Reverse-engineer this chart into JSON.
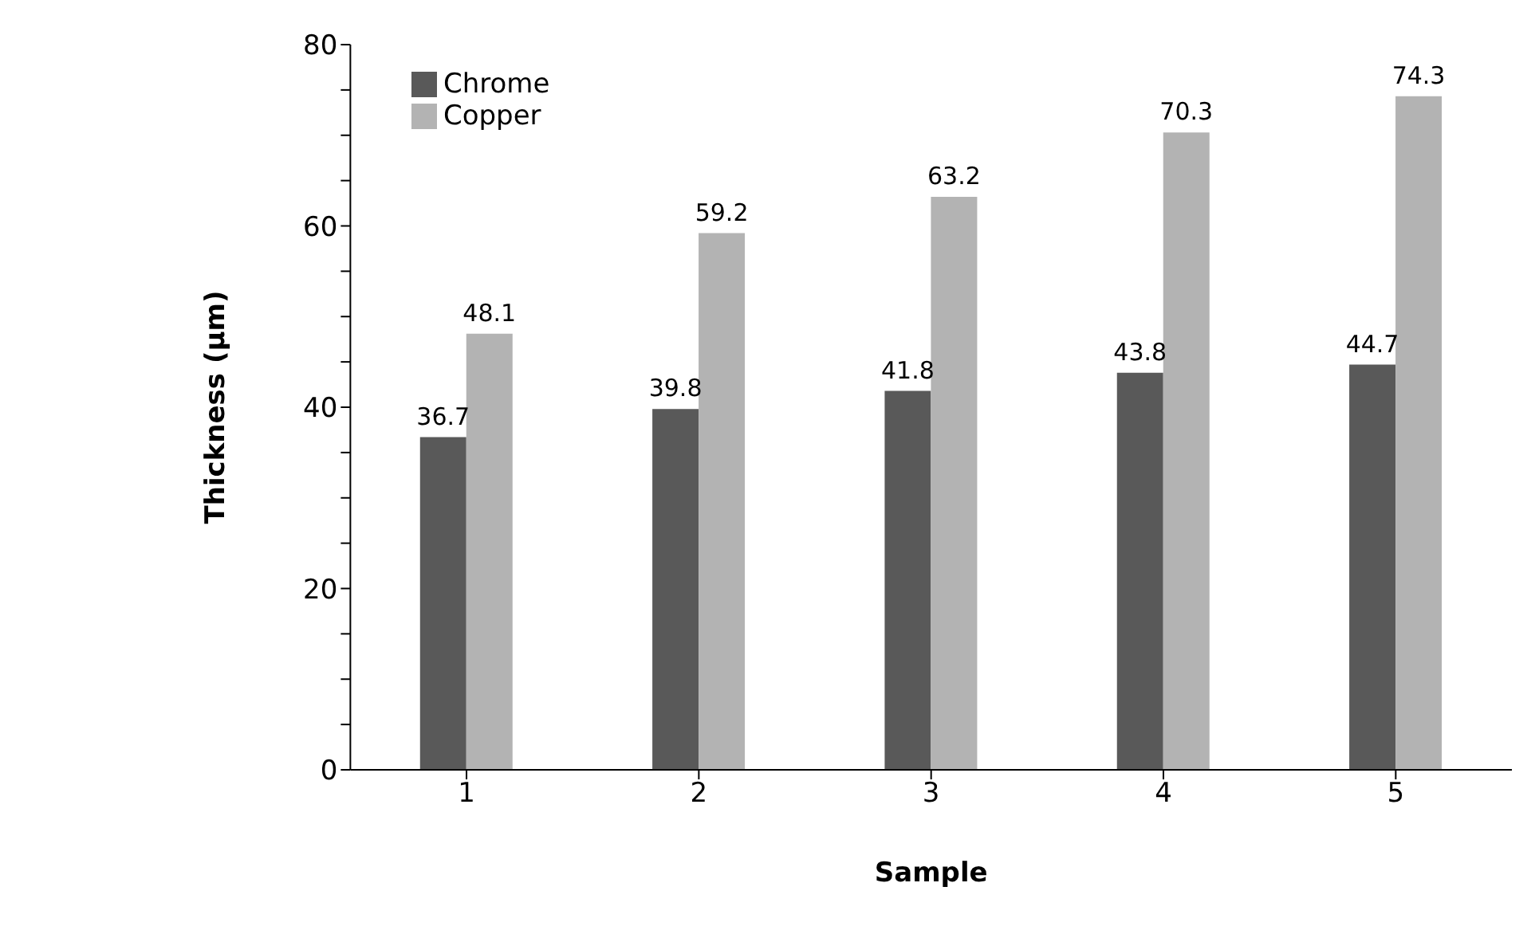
{
  "chart_data": {
    "type": "bar",
    "xlabel": "Sample",
    "ylabel": "Thickness (µm)",
    "categories": [
      "1",
      "2",
      "3",
      "4",
      "5"
    ],
    "series": [
      {
        "name": "Chrome",
        "color": "#595959",
        "values": [
          36.7,
          39.8,
          41.8,
          43.8,
          44.7
        ]
      },
      {
        "name": "Copper",
        "color": "#b3b3b3",
        "values": [
          48.1,
          59.2,
          63.2,
          70.3,
          74.3
        ]
      }
    ],
    "ylim": [
      0,
      80
    ],
    "yticks": [
      0,
      {
        "value": 5,
        "label": null
      },
      {
        "value": 10,
        "label": null
      },
      {
        "value": 15,
        "label": null
      },
      20,
      {
        "value": 25,
        "label": null
      },
      {
        "value": 30,
        "label": null
      },
      {
        "value": 35,
        "label": null
      },
      40,
      {
        "value": 45,
        "label": null
      },
      {
        "value": 50,
        "label": null
      },
      {
        "value": 55,
        "label": null
      },
      60,
      {
        "value": 65,
        "label": null
      },
      {
        "value": 70,
        "label": null
      },
      {
        "value": 75,
        "label": null
      },
      80
    ],
    "data_labels": true,
    "grid": false,
    "legend": "top left"
  }
}
